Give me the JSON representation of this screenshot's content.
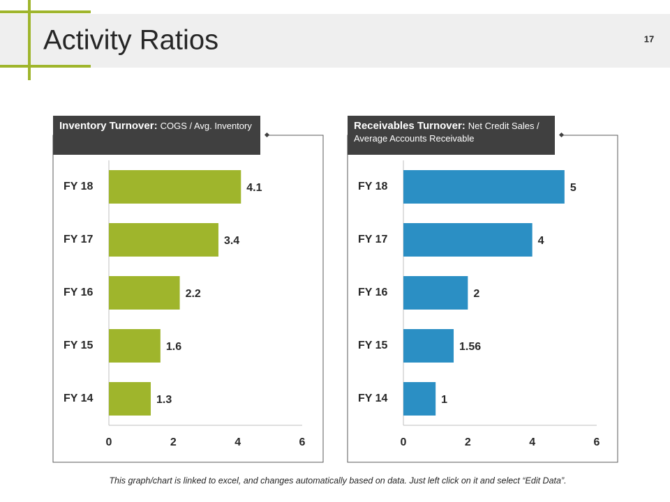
{
  "header": {
    "title": "Activity Ratios",
    "page_number": "17"
  },
  "footnote": "This graph/chart is linked to excel, and changes automatically based on data. Just left click on it and select “Edit Data”.",
  "chart_data": [
    {
      "type": "bar",
      "title": "Inventory Turnover:",
      "subtitle": "COGS / Avg. Inventory",
      "categories": [
        "FY 18",
        "FY 17",
        "FY 16",
        "FY 15",
        "FY 14"
      ],
      "values": [
        4.1,
        3.4,
        2.2,
        1.6,
        1.3
      ],
      "color": "#9fb52c",
      "xlim": [
        0,
        6
      ],
      "xticks": [
        0,
        2,
        4,
        6
      ]
    },
    {
      "type": "bar",
      "title": "Receivables Turnover:",
      "subtitle": "Net Credit Sales / Average Accounts Receivable",
      "categories": [
        "FY 18",
        "FY 17",
        "FY 16",
        "FY 15",
        "FY 14"
      ],
      "values": [
        5,
        4,
        2,
        1.56,
        1
      ],
      "color": "#2b8fc4",
      "xlim": [
        0,
        6
      ],
      "xticks": [
        0,
        2,
        4,
        6
      ]
    }
  ]
}
